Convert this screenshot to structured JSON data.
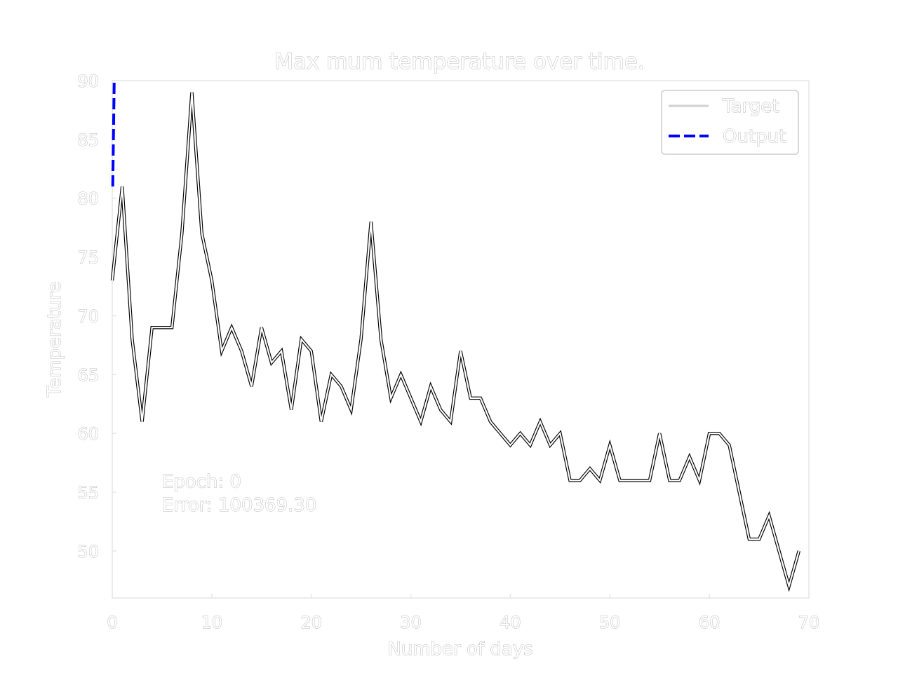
{
  "chart_data": {
    "type": "line",
    "title": "Max mum temperature over time.",
    "xlabel": "Number of days",
    "ylabel": "Temperature",
    "xlim": [
      0,
      70
    ],
    "ylim": [
      46,
      90
    ],
    "xticks": [
      0,
      10,
      20,
      30,
      40,
      50,
      60,
      70
    ],
    "yticks": [
      50,
      55,
      60,
      65,
      70,
      75,
      80,
      85,
      90
    ],
    "xtick_labels": [
      "0",
      "10",
      "20",
      "30",
      "40",
      "50",
      "60",
      "70"
    ],
    "ytick_labels": [
      "50",
      "55",
      "60",
      "65",
      "70",
      "75",
      "80",
      "85",
      "90"
    ],
    "grid": false,
    "legend_position": "top-right",
    "series": [
      {
        "name": "Target",
        "style": "solid",
        "color": "#ffffff",
        "x": [
          0,
          1,
          2,
          3,
          4,
          5,
          6,
          7,
          8,
          9,
          10,
          11,
          12,
          13,
          14,
          15,
          16,
          17,
          18,
          19,
          20,
          21,
          22,
          23,
          24,
          25,
          26,
          27,
          28,
          29,
          30,
          31,
          32,
          33,
          34,
          35,
          36,
          37,
          38,
          39,
          40,
          41,
          42,
          43,
          44,
          45,
          46,
          47,
          48,
          49,
          50,
          51,
          52,
          53,
          54,
          55,
          56,
          57,
          58,
          59,
          60,
          61,
          62,
          63,
          64,
          65,
          66,
          67,
          68,
          69
        ],
        "values": [
          73,
          81,
          68,
          61,
          69,
          69,
          69,
          77,
          89,
          77,
          73,
          67,
          69,
          67,
          64,
          69,
          66,
          67,
          62,
          68,
          67,
          61,
          65,
          64,
          62,
          68,
          78,
          68,
          63,
          65,
          63,
          61,
          64,
          62,
          61,
          67,
          63,
          63,
          61,
          60,
          59,
          60,
          59,
          61,
          59,
          60,
          56,
          56,
          57,
          56,
          59,
          56,
          56,
          56,
          56,
          60,
          56,
          56,
          58,
          56,
          60,
          60,
          59,
          55,
          51,
          51,
          53,
          50,
          47,
          50
        ]
      },
      {
        "name": "Output",
        "style": "dashed",
        "color": "#0000ff",
        "x": [
          0.05,
          0.2
        ],
        "values": [
          81,
          90
        ]
      }
    ],
    "annotations": [
      {
        "text": "Epoch: 0",
        "x": 5,
        "y": 55.4
      },
      {
        "text": "Error: 100369.30",
        "x": 5,
        "y": 53.4
      }
    ]
  },
  "colors": {
    "background": "#ffffff",
    "text_fill": "#ffffff",
    "text_outline": "#b9b9b9",
    "axis_spine": "#e6e6e6",
    "target_line": "#ffffff",
    "target_outline": "#000000",
    "output_line": "#0000ff"
  }
}
